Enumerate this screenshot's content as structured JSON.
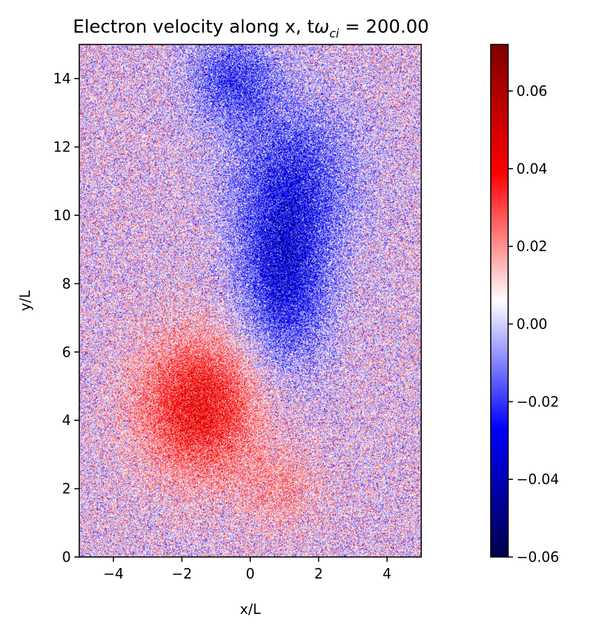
{
  "chart_data": {
    "type": "heatmap",
    "title_main": "Electron velocity along x, t",
    "title_symbol": "ω",
    "title_subscript": "ci",
    "title_value": " = 200.00",
    "xlabel": "x/L",
    "ylabel": "y/L",
    "xlim": [
      -5,
      5
    ],
    "ylim": [
      0,
      15
    ],
    "xticks": [
      -4,
      -2,
      0,
      2,
      4
    ],
    "xtick_labels": [
      "−4",
      "−2",
      "0",
      "2",
      "4"
    ],
    "yticks": [
      0,
      2,
      4,
      6,
      8,
      10,
      12,
      14
    ],
    "ytick_labels": [
      "0",
      "2",
      "4",
      "6",
      "8",
      "10",
      "12",
      "14"
    ],
    "colormap": "seismic",
    "colorbar": {
      "vmin": -0.06,
      "vmax": 0.072,
      "ticks": [
        -0.06,
        -0.04,
        -0.02,
        0.0,
        0.02,
        0.04,
        0.06
      ],
      "tick_labels": [
        "−0.06",
        "−0.04",
        "−0.02",
        "0.00",
        "0.02",
        "0.04",
        "0.06"
      ]
    },
    "features": [
      {
        "sign": "positive",
        "center": [
          -1.5,
          4.4
        ],
        "radius": [
          1.7,
          2.0
        ],
        "peak": 0.038
      },
      {
        "sign": "positive",
        "center": [
          0.9,
          2.0
        ],
        "radius": [
          1.2,
          1.2
        ],
        "peak": 0.012
      },
      {
        "sign": "negative",
        "center": [
          1.0,
          8.2
        ],
        "radius": [
          1.3,
          2.6
        ],
        "peak": -0.032
      },
      {
        "sign": "negative",
        "center": [
          1.3,
          11.3
        ],
        "radius": [
          2.0,
          2.2
        ],
        "peak": -0.02
      },
      {
        "sign": "negative",
        "center": [
          -0.5,
          14.0
        ],
        "radius": [
          1.3,
          1.3
        ],
        "peak": -0.022
      }
    ],
    "noise_amplitude": 0.014
  }
}
